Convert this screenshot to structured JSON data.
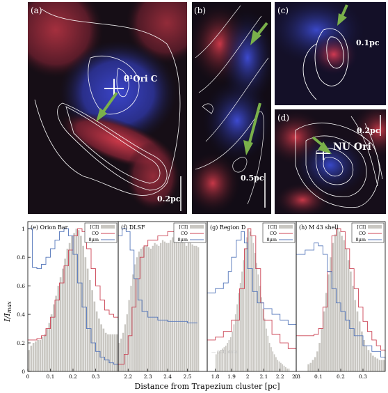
{
  "images": [
    {
      "label": "(a)",
      "annotation": "θ¹Ori C",
      "scale": "0.2pc"
    },
    {
      "label": "(b)",
      "scale": "0.5pc"
    },
    {
      "label": "(c)",
      "scale": "0.1pc"
    },
    {
      "label": "(d)",
      "annotation": "NU Ori",
      "scale": "0.2pc"
    }
  ],
  "colors": {
    "ci_fill": "#c9c7c2",
    "co_line": "#cc4455",
    "um8_line": "#5577bb",
    "arrow": "#7ab04a"
  },
  "ylabel": "I/I",
  "ylabel_sub": "max",
  "xlabel": "Distance from Trapezium cluster [pc]",
  "legend": {
    "ci": "[CI]",
    "co": "CO",
    "um8": "8μm"
  },
  "ci_note": "[CI] data",
  "chart_data": [
    {
      "type": "bar",
      "title": "(e) Orion Bar",
      "xlim": [
        0,
        0.4
      ],
      "ylim": [
        0,
        1.05
      ],
      "xticks": [
        "0",
        "0.1",
        "0.2",
        "0.3"
      ],
      "xtick_values": [
        0,
        0.1,
        0.2,
        0.3
      ],
      "yticks": [
        "0",
        "0.2",
        "0.4",
        "0.6",
        "0.8",
        "1"
      ],
      "ytick_values": [
        0,
        0.2,
        0.4,
        0.6,
        0.8,
        1
      ],
      "series": [
        {
          "name": "[CI]",
          "x": [
            0.0,
            0.01,
            0.02,
            0.03,
            0.04,
            0.05,
            0.06,
            0.07,
            0.08,
            0.09,
            0.1,
            0.11,
            0.12,
            0.13,
            0.14,
            0.15,
            0.16,
            0.17,
            0.18,
            0.19,
            0.2,
            0.21,
            0.22,
            0.23,
            0.24,
            0.25,
            0.26,
            0.27,
            0.28,
            0.29,
            0.3,
            0.31,
            0.32,
            0.33,
            0.34,
            0.35,
            0.36,
            0.37,
            0.38,
            0.39
          ],
          "y": [
            0.15,
            0.18,
            0.2,
            0.21,
            0.22,
            0.22,
            0.24,
            0.26,
            0.3,
            0.34,
            0.4,
            0.47,
            0.53,
            0.6,
            0.66,
            0.72,
            0.79,
            0.86,
            0.9,
            0.95,
            0.97,
            1.0,
            0.99,
            0.95,
            0.88,
            0.8,
            0.72,
            0.64,
            0.57,
            0.49,
            0.42,
            0.37,
            0.33,
            0.3,
            0.27,
            0.26,
            0.26,
            0.26,
            0.26,
            0.26
          ]
        },
        {
          "name": "CO",
          "x": [
            0.0,
            0.02,
            0.04,
            0.06,
            0.08,
            0.1,
            0.12,
            0.14,
            0.16,
            0.18,
            0.2,
            0.22,
            0.24,
            0.26,
            0.28,
            0.3,
            0.32,
            0.34,
            0.36,
            0.38,
            0.4
          ],
          "y": [
            0.22,
            0.22,
            0.23,
            0.25,
            0.3,
            0.38,
            0.5,
            0.62,
            0.74,
            0.85,
            0.95,
            1.0,
            0.98,
            0.86,
            0.72,
            0.6,
            0.5,
            0.43,
            0.4,
            0.38,
            0.37
          ]
        },
        {
          "name": "8μm",
          "x": [
            0.0,
            0.02,
            0.04,
            0.06,
            0.08,
            0.1,
            0.12,
            0.14,
            0.16,
            0.18,
            0.2,
            0.22,
            0.24,
            0.26,
            0.28,
            0.3,
            0.32,
            0.34,
            0.36,
            0.38,
            0.4
          ],
          "y": [
            1.0,
            0.73,
            0.72,
            0.75,
            0.8,
            0.86,
            0.92,
            0.98,
            1.0,
            0.95,
            0.82,
            0.62,
            0.45,
            0.3,
            0.2,
            0.14,
            0.1,
            0.08,
            0.06,
            0.05,
            0.05
          ]
        }
      ]
    },
    {
      "type": "bar",
      "title": "(f) DLSF",
      "xlim": [
        2.15,
        2.6
      ],
      "ylim": [
        0,
        1.05
      ],
      "xticks": [
        "2.2",
        "2.3",
        "2.4",
        "2.5"
      ],
      "xtick_values": [
        2.2,
        2.3,
        2.4,
        2.5
      ],
      "series": [
        {
          "name": "[CI]",
          "x": [
            2.15,
            2.16,
            2.17,
            2.18,
            2.19,
            2.2,
            2.21,
            2.22,
            2.23,
            2.24,
            2.25,
            2.26,
            2.27,
            2.28,
            2.29,
            2.3,
            2.31,
            2.32,
            2.33,
            2.34,
            2.35,
            2.36,
            2.37,
            2.38,
            2.39,
            2.4,
            2.41,
            2.42,
            2.43,
            2.44,
            2.45,
            2.46,
            2.47,
            2.48,
            2.49,
            2.5,
            2.51,
            2.52,
            2.53,
            2.54,
            2.55
          ],
          "y": [
            0.2,
            0.23,
            0.27,
            0.33,
            0.4,
            0.5,
            0.6,
            0.68,
            0.75,
            0.8,
            0.84,
            0.86,
            0.87,
            0.88,
            0.88,
            0.87,
            0.86,
            0.88,
            0.9,
            0.89,
            0.88,
            0.9,
            0.92,
            0.91,
            0.9,
            0.9,
            0.92,
            0.94,
            0.93,
            0.92,
            0.91,
            0.9,
            0.92,
            0.9,
            0.88,
            0.9,
            0.9,
            0.89,
            0.88,
            0.88,
            0.87
          ]
        },
        {
          "name": "CO",
          "x": [
            2.15,
            2.18,
            2.2,
            2.22,
            2.24,
            2.26,
            2.28,
            2.3,
            2.35,
            2.4,
            2.45,
            2.5,
            2.55
          ],
          "y": [
            0.05,
            0.12,
            0.25,
            0.45,
            0.65,
            0.8,
            0.88,
            0.92,
            0.95,
            0.98,
            0.97,
            0.96,
            0.96
          ]
        },
        {
          "name": "8μm",
          "x": [
            2.15,
            2.17,
            2.19,
            2.21,
            2.23,
            2.25,
            2.27,
            2.3,
            2.35,
            2.4,
            2.45,
            2.5,
            2.55
          ],
          "y": [
            0.95,
            1.0,
            0.98,
            0.85,
            0.65,
            0.5,
            0.42,
            0.38,
            0.36,
            0.35,
            0.35,
            0.34,
            0.34
          ]
        }
      ]
    },
    {
      "type": "bar",
      "title": "(g) Region D",
      "xlim": [
        1.75,
        2.3
      ],
      "ylim": [
        0,
        1.05
      ],
      "xticks": [
        "1.8",
        "1.9",
        "2",
        "2.1",
        "2.2",
        "2.3"
      ],
      "xtick_values": [
        1.8,
        1.9,
        2.0,
        2.1,
        2.2,
        2.3
      ],
      "series": [
        {
          "name": "[CI]",
          "x": [
            1.8,
            1.81,
            1.82,
            1.83,
            1.84,
            1.85,
            1.86,
            1.87,
            1.88,
            1.89,
            1.9,
            1.91,
            1.92,
            1.93,
            1.94,
            1.95,
            1.96,
            1.97,
            1.98,
            1.99,
            2.0,
            2.01,
            2.02,
            2.03,
            2.04,
            2.05,
            2.06,
            2.07,
            2.08,
            2.09,
            2.1,
            2.11,
            2.12,
            2.13,
            2.14,
            2.15,
            2.16,
            2.17,
            2.18,
            2.19,
            2.2,
            2.21,
            2.22,
            2.23,
            2.24,
            2.25
          ],
          "y": [
            0.12,
            0.14,
            0.14,
            0.15,
            0.16,
            0.17,
            0.18,
            0.2,
            0.22,
            0.24,
            0.28,
            0.33,
            0.4,
            0.47,
            0.55,
            0.62,
            0.7,
            0.78,
            0.86,
            0.94,
            1.0,
            0.98,
            0.95,
            0.9,
            0.83,
            0.76,
            0.68,
            0.6,
            0.52,
            0.44,
            0.37,
            0.3,
            0.25,
            0.2,
            0.17,
            0.14,
            0.12,
            0.1,
            0.08,
            0.07,
            0.06,
            0.05,
            0.04,
            0.03,
            0.02,
            0.02
          ]
        },
        {
          "name": "CO",
          "x": [
            1.75,
            1.8,
            1.85,
            1.9,
            1.95,
            1.98,
            2.0,
            2.02,
            2.05,
            2.08,
            2.1,
            2.15,
            2.2,
            2.25,
            2.3
          ],
          "y": [
            0.22,
            0.24,
            0.28,
            0.36,
            0.58,
            0.86,
            1.0,
            0.95,
            0.72,
            0.48,
            0.36,
            0.26,
            0.2,
            0.16,
            0.14
          ]
        },
        {
          "name": "8μm",
          "x": [
            1.75,
            1.8,
            1.85,
            1.88,
            1.9,
            1.93,
            1.96,
            1.98,
            2.0,
            2.03,
            2.06,
            2.1,
            2.15,
            2.2,
            2.25,
            2.3
          ],
          "y": [
            0.55,
            0.58,
            0.62,
            0.7,
            0.8,
            0.92,
            0.98,
            0.9,
            0.72,
            0.56,
            0.48,
            0.44,
            0.4,
            0.36,
            0.33,
            0.3
          ]
        }
      ]
    },
    {
      "type": "bar",
      "title": "(h) M 43 shell",
      "xlim": [
        0,
        0.4
      ],
      "ylim": [
        0,
        1.05
      ],
      "xticks": [
        "0",
        "0.1",
        "0.2",
        "0.3"
      ],
      "xtick_values": [
        0,
        0.1,
        0.2,
        0.3
      ],
      "series": [
        {
          "name": "[CI]",
          "x": [
            0.05,
            0.06,
            0.07,
            0.08,
            0.09,
            0.1,
            0.11,
            0.12,
            0.13,
            0.14,
            0.15,
            0.16,
            0.17,
            0.18,
            0.19,
            0.2,
            0.21,
            0.22,
            0.23,
            0.24,
            0.25,
            0.26,
            0.27,
            0.28,
            0.29,
            0.3,
            0.31,
            0.32,
            0.33,
            0.34,
            0.35,
            0.36,
            0.37,
            0.38,
            0.39
          ],
          "y": [
            0.05,
            0.06,
            0.08,
            0.1,
            0.14,
            0.2,
            0.3,
            0.42,
            0.55,
            0.68,
            0.8,
            0.9,
            0.96,
            1.0,
            0.98,
            0.95,
            0.92,
            0.86,
            0.78,
            0.7,
            0.6,
            0.5,
            0.42,
            0.35,
            0.28,
            0.22,
            0.18,
            0.15,
            0.13,
            0.11,
            0.1,
            0.09,
            0.08,
            0.08,
            0.08
          ]
        },
        {
          "name": "CO",
          "x": [
            0.0,
            0.05,
            0.08,
            0.1,
            0.12,
            0.14,
            0.16,
            0.18,
            0.2,
            0.22,
            0.24,
            0.26,
            0.28,
            0.3,
            0.32,
            0.34,
            0.36,
            0.38,
            0.4
          ],
          "y": [
            0.25,
            0.25,
            0.26,
            0.3,
            0.45,
            0.7,
            0.95,
            1.0,
            0.98,
            0.86,
            0.72,
            0.58,
            0.45,
            0.35,
            0.28,
            0.22,
            0.18,
            0.15,
            0.14
          ]
        },
        {
          "name": "8μm",
          "x": [
            0.0,
            0.04,
            0.08,
            0.1,
            0.12,
            0.14,
            0.16,
            0.18,
            0.2,
            0.22,
            0.24,
            0.26,
            0.3,
            0.34,
            0.38,
            0.4
          ],
          "y": [
            0.82,
            0.85,
            0.9,
            0.88,
            0.82,
            0.7,
            0.58,
            0.48,
            0.42,
            0.36,
            0.3,
            0.25,
            0.18,
            0.14,
            0.1,
            0.09
          ]
        }
      ]
    }
  ]
}
